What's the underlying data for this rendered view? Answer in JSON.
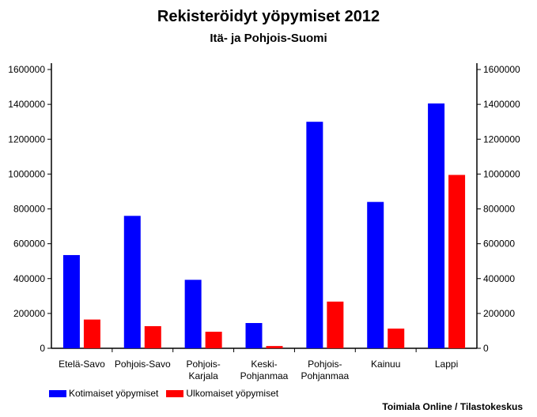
{
  "chart_data": {
    "type": "bar",
    "title": "Rekisteröidyt yöpymiset 2012",
    "subtitle": "Itä- ja Pohjois-Suomi",
    "categories": [
      [
        "Etelä-Savo"
      ],
      [
        "Pohjois-Savo"
      ],
      [
        "Pohjois-",
        "Karjala"
      ],
      [
        "Keski-",
        "Pohjanmaa"
      ],
      [
        "Pohjois-",
        "Pohjanmaa"
      ],
      [
        "Kainuu"
      ],
      [
        "Lappi"
      ]
    ],
    "series": [
      {
        "name": "Kotimaiset yöpymiset",
        "color": "#0000ff",
        "values": [
          535000,
          760000,
          393000,
          145000,
          1300000,
          840000,
          1405000
        ]
      },
      {
        "name": "Ulkomaiset yöpymiset",
        "color": "#ff0000",
        "values": [
          165000,
          127000,
          95000,
          13000,
          268000,
          113000,
          995000
        ]
      }
    ],
    "ylim": [
      0,
      1600000
    ],
    "yticks": [
      "0",
      "200000",
      "400000",
      "600000",
      "800000",
      "1000000",
      "1200000",
      "1400000",
      "1600000"
    ],
    "grid": false,
    "legend_position": "bottom-left",
    "source": "Toimiala Online / Tilastokeskus"
  }
}
